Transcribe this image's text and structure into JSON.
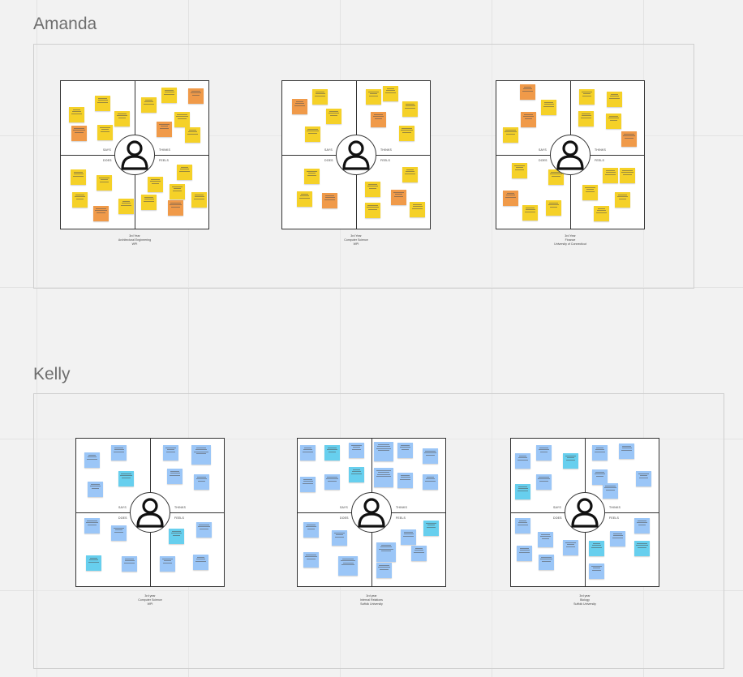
{
  "groups": [
    {
      "title": "Amanda",
      "maps": [
        {
          "caption": [
            "3rd Year",
            "Architectural Engineering",
            "WPI"
          ]
        },
        {
          "caption": [
            "3rd Year",
            "Computer Science",
            "WPI"
          ]
        },
        {
          "caption": [
            "3rd Year",
            "Finance",
            "University of Connecticut"
          ]
        }
      ]
    },
    {
      "title": "Kelly",
      "maps": [
        {
          "caption": [
            "3rd year",
            "Computer Science",
            "WPI"
          ]
        },
        {
          "caption": [
            "3rd year",
            "Internal Relations",
            "Suffolk University"
          ]
        },
        {
          "caption": [
            "3rd year",
            "Biology",
            "Suffolk University"
          ]
        }
      ]
    }
  ],
  "quadrant_labels": {
    "says": "SAYS",
    "thinks": "THINKS",
    "does": "DOES",
    "feels": "FEELS"
  },
  "avatar_icon": "person-icon",
  "colors": {
    "yellow_note": "#f5d128",
    "orange_note": "#f09a49",
    "blue_note": "#9bc6f7",
    "cyan_note": "#67cfee"
  },
  "legible_notes": {
    "kelly_map_1": [
      "Max club dues around 3% except internships",
      "If paid internship in the hue growing",
      "Worth a good internship"
    ],
    "kelly_map_2": [
      "Look at opportunity providers offers",
      "Searches on LinkedIn",
      "Well supported by Mediumfire"
    ]
  }
}
